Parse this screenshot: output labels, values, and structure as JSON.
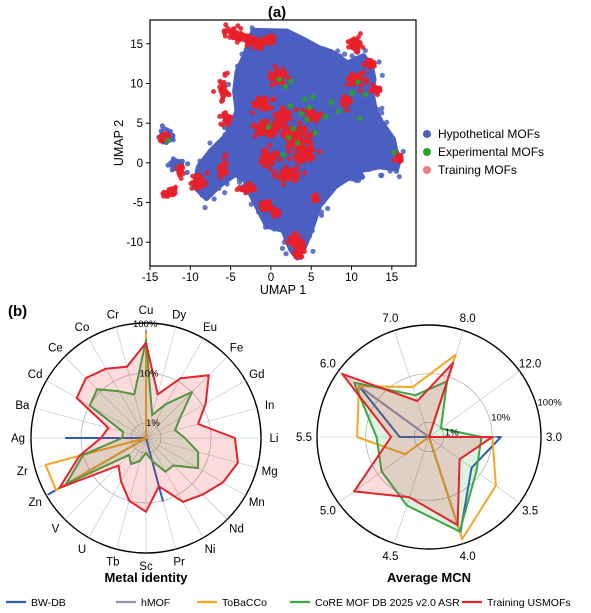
{
  "panel_a_label": "(a)",
  "panel_b_label": "(b)",
  "colors": {
    "hypothetical": "#4a5fc1",
    "experimental": "#2ca02c",
    "training": "#e8202a",
    "bwdb": "#2f5bb7",
    "hmof": "#8e93b4",
    "tobacco": "#f5a623",
    "core": "#3aa845",
    "usmof": "#e2242b"
  },
  "chart_data": [
    {
      "type": "scatter",
      "xlabel": "UMAP 1",
      "ylabel": "UMAP 2",
      "xlim": [
        -15,
        18
      ],
      "ylim": [
        -13,
        18
      ],
      "xticks": [
        -15,
        -10,
        -5,
        0,
        5,
        10,
        15
      ],
      "yticks": [
        -10,
        -5,
        0,
        5,
        10,
        15
      ],
      "legend_position": "right",
      "series": [
        {
          "name": "Hypothetical MOFs",
          "polygon": [
            [
              -2.2,
              16.7
            ],
            [
              2,
              16.6
            ],
            [
              4.2,
              15.5
            ],
            [
              6,
              14.5
            ],
            [
              7.5,
              14
            ],
            [
              9.5,
              12.6
            ],
            [
              11.5,
              13.5
            ],
            [
              12.5,
              12
            ],
            [
              12.8,
              10.5
            ],
            [
              12.5,
              9
            ],
            [
              13,
              6.5
            ],
            [
              13.8,
              5
            ],
            [
              15.2,
              3
            ],
            [
              15.5,
              1.5
            ],
            [
              16,
              0.6
            ],
            [
              15.6,
              -0.8
            ],
            [
              13.5,
              -0.5
            ],
            [
              11,
              -1
            ],
            [
              8,
              -3
            ],
            [
              6,
              -5.5
            ],
            [
              5,
              -8.5
            ],
            [
              4,
              -11
            ],
            [
              3.3,
              -12
            ],
            [
              2.5,
              -11
            ],
            [
              1.5,
              -8.5
            ],
            [
              -0.5,
              -8
            ],
            [
              -1.5,
              -6
            ],
            [
              -2.5,
              -4
            ],
            [
              -3,
              -2
            ],
            [
              -4.5,
              -1.5
            ],
            [
              -6.5,
              -3
            ],
            [
              -8,
              -4.5
            ],
            [
              -9.5,
              -3
            ],
            [
              -9,
              -0.5
            ],
            [
              -7.5,
              1.5
            ],
            [
              -5.5,
              3.5
            ],
            [
              -4.2,
              6.5
            ],
            [
              -4.5,
              9
            ],
            [
              -4.2,
              11.5
            ],
            [
              -3.3,
              13.5
            ]
          ],
          "blobs": [
            [
              -13,
              3.3
            ],
            [
              -11.5,
              -0.2
            ],
            [
              -2.8,
              -2.8
            ],
            [
              10.5,
              -1.5
            ],
            [
              -7.5,
              -2
            ],
            [
              -4.5,
              4.8
            ],
            [
              -1.8,
              9.5
            ]
          ]
        },
        {
          "name": "Experimental MOFs",
          "points": [
            [
              1,
              10.5
            ],
            [
              1.8,
              9.6
            ],
            [
              2.5,
              10.3
            ],
            [
              4.2,
              8
            ],
            [
              4.8,
              7
            ],
            [
              5.2,
              8.3
            ],
            [
              3.8,
              6.2
            ],
            [
              4.5,
              5.5
            ],
            [
              2.8,
              4.3
            ],
            [
              2.2,
              3.2
            ],
            [
              3.3,
              2.5
            ],
            [
              5.5,
              3.8
            ],
            [
              6.8,
              5.8
            ],
            [
              8.4,
              6.5
            ],
            [
              10.1,
              8.8
            ],
            [
              11,
              5.6
            ],
            [
              10.8,
              10.2
            ],
            [
              11.7,
              8.6
            ],
            [
              -0.3,
              4.5
            ],
            [
              2.4,
              7.2
            ],
            [
              -12.8,
              2.8
            ],
            [
              15.3,
              1.3
            ],
            [
              7.5,
              7.6
            ],
            [
              1.5,
              1
            ]
          ]
        },
        {
          "name": "Training MOFs",
          "clusters": [
            [
              -4.5,
              16.2,
              1.3,
              0.9
            ],
            [
              -2.8,
              15.5,
              0.8,
              0.6
            ],
            [
              -1.5,
              14.9,
              0.6,
              0.5
            ],
            [
              -0.3,
              15.5,
              0.6,
              0.5
            ],
            [
              0.8,
              10.9,
              1.0,
              0.8
            ],
            [
              -5.9,
              9.2,
              0.5,
              1.6
            ],
            [
              -5.5,
              5.8,
              0.5,
              0.8
            ],
            [
              -1.2,
              7.5,
              1.2,
              0.8
            ],
            [
              -0.5,
              4.2,
              1.5,
              1.0
            ],
            [
              1.5,
              6,
              0.9,
              0.7
            ],
            [
              3.1,
              3.2,
              1.7,
              1.4
            ],
            [
              5,
              5.9,
              1.0,
              0.7
            ],
            [
              4.2,
              1.2,
              1.4,
              0.9
            ],
            [
              -0.3,
              0.7,
              1.0,
              1.0
            ],
            [
              -6,
              -0.6,
              0.5,
              1.1
            ],
            [
              -9,
              -2.4,
              0.8,
              1.0
            ],
            [
              -12.2,
              -3.6,
              0.4,
              0.6
            ],
            [
              -13,
              -4,
              0.4,
              0.3
            ],
            [
              -11.2,
              -1,
              0.4,
              0.6
            ],
            [
              -2.8,
              -3.3,
              0.9,
              0.5
            ],
            [
              2.2,
              -1.6,
              1.3,
              0.8
            ],
            [
              -0.6,
              -5.4,
              0.7,
              0.6
            ],
            [
              0.6,
              -6.2,
              0.5,
              0.4
            ],
            [
              3,
              -9.8,
              0.7,
              0.6
            ],
            [
              3.6,
              -10.5,
              0.6,
              0.4
            ],
            [
              3.5,
              -11.5,
              0.6,
              0.4
            ],
            [
              10.5,
              14.9,
              0.8,
              0.9
            ],
            [
              12.2,
              12.5,
              0.5,
              0.5
            ],
            [
              10.8,
              10.5,
              1.0,
              0.8
            ],
            [
              9.3,
              7.8,
              0.6,
              0.6
            ],
            [
              13,
              9.2,
              0.6,
              0.6
            ],
            [
              15.8,
              0.5,
              0.5,
              0.4
            ],
            [
              -13.3,
              3.2,
              0.6,
              0.5
            ],
            [
              5.5,
              -4.5,
              0.4,
              0.4
            ]
          ]
        }
      ]
    },
    {
      "type": "radar",
      "title": "Metal identity",
      "radial_scale": "log",
      "radial_ticks": [
        "1%",
        "10%",
        "100%"
      ],
      "categories": [
        "Cu",
        "Cr",
        "Co",
        "Ce",
        "Cd",
        "Ba",
        "Ag",
        "Zr",
        "Zn",
        "V",
        "U",
        "Tb",
        "Sc",
        "Pr",
        "Ni",
        "Nd",
        "Mn",
        "Mg",
        "Li",
        "In",
        "Gd",
        "Fe",
        "Eu",
        "Dy"
      ],
      "series": [
        {
          "name": "BW-DB",
          "values": [
            30,
            0.3,
            0.2,
            0.2,
            0.2,
            0.2,
            20,
            0.3,
            90,
            0.3,
            0.2,
            0.2,
            0.2,
            10,
            0.2,
            0.2,
            0.2,
            0.2,
            0.2,
            0.2,
            0.2,
            0.2,
            0.2,
            0.2
          ]
        },
        {
          "name": "hMOF",
          "values": [
            70,
            0.2,
            0.2,
            0.2,
            0.2,
            0.2,
            0.2,
            0.2,
            40,
            0.2,
            0.2,
            0.2,
            0.2,
            0.2,
            0.2,
            0.2,
            0.2,
            0.2,
            0.2,
            0.2,
            0.2,
            0.2,
            0.2,
            0.2
          ]
        },
        {
          "name": "ToBaCCo",
          "values": [
            60,
            0.2,
            0.2,
            0.2,
            0.2,
            0.2,
            0.2,
            60,
            60,
            0.2,
            0.2,
            0.2,
            0.2,
            0.2,
            0.2,
            0.2,
            0.2,
            0.2,
            0.2,
            0.2,
            0.2,
            0.2,
            0.2,
            0.2
          ]
        },
        {
          "name": "CoRE MOF DB 2025 v2.0 ASR",
          "values": [
            45,
            4,
            6,
            12,
            10,
            1.5,
            1.5,
            10,
            35,
            1.5,
            2,
            1.5,
            1,
            1.5,
            3,
            3,
            8,
            6,
            3,
            2,
            3,
            10,
            3,
            1.5
          ]
        },
        {
          "name": "Training USMOFs",
          "values": [
            40,
            15,
            20,
            25,
            20,
            3,
            4,
            12,
            50,
            3,
            5,
            10,
            15,
            5,
            15,
            20,
            30,
            40,
            30,
            6,
            12,
            30,
            12,
            4
          ]
        }
      ]
    },
    {
      "type": "radar",
      "title": "Average MCN",
      "radial_scale": "log",
      "radial_ticks": [
        "1%",
        "10%",
        "100%"
      ],
      "categories": [
        "3.0",
        "12.0",
        "8.0",
        "7.0",
        "6.0",
        "5.5",
        "5.0",
        "4.5",
        "4.0",
        "3.5"
      ],
      "series": [
        {
          "name": "BW-DB",
          "values": [
            15,
            0.2,
            0.2,
            0.4,
            30,
            2,
            0.2,
            0.2,
            60,
            6
          ]
        },
        {
          "name": "hMOF",
          "values": [
            12,
            0.2,
            0.2,
            0.2,
            30,
            0.2,
            0.2,
            0.2,
            80,
            0.5
          ]
        },
        {
          "name": "ToBaCCo",
          "values": [
            10,
            0.2,
            30,
            6,
            30,
            15,
            2,
            0.5,
            80,
            25
          ]
        },
        {
          "name": "CoRE MOF DB 2025 v2.0 ASR",
          "values": [
            6,
            1,
            8,
            4,
            40,
            6,
            8,
            15,
            55,
            8
          ]
        },
        {
          "name": "Training USMOFs",
          "values": [
            10,
            0.4,
            20,
            3,
            80,
            3,
            40,
            10,
            40,
            3
          ]
        }
      ]
    }
  ],
  "legend_b": [
    "BW-DB",
    "hMOF",
    "ToBaCCo",
    "CoRE MOF DB 2025 v2.0 ASR",
    "Training USMOFs"
  ]
}
